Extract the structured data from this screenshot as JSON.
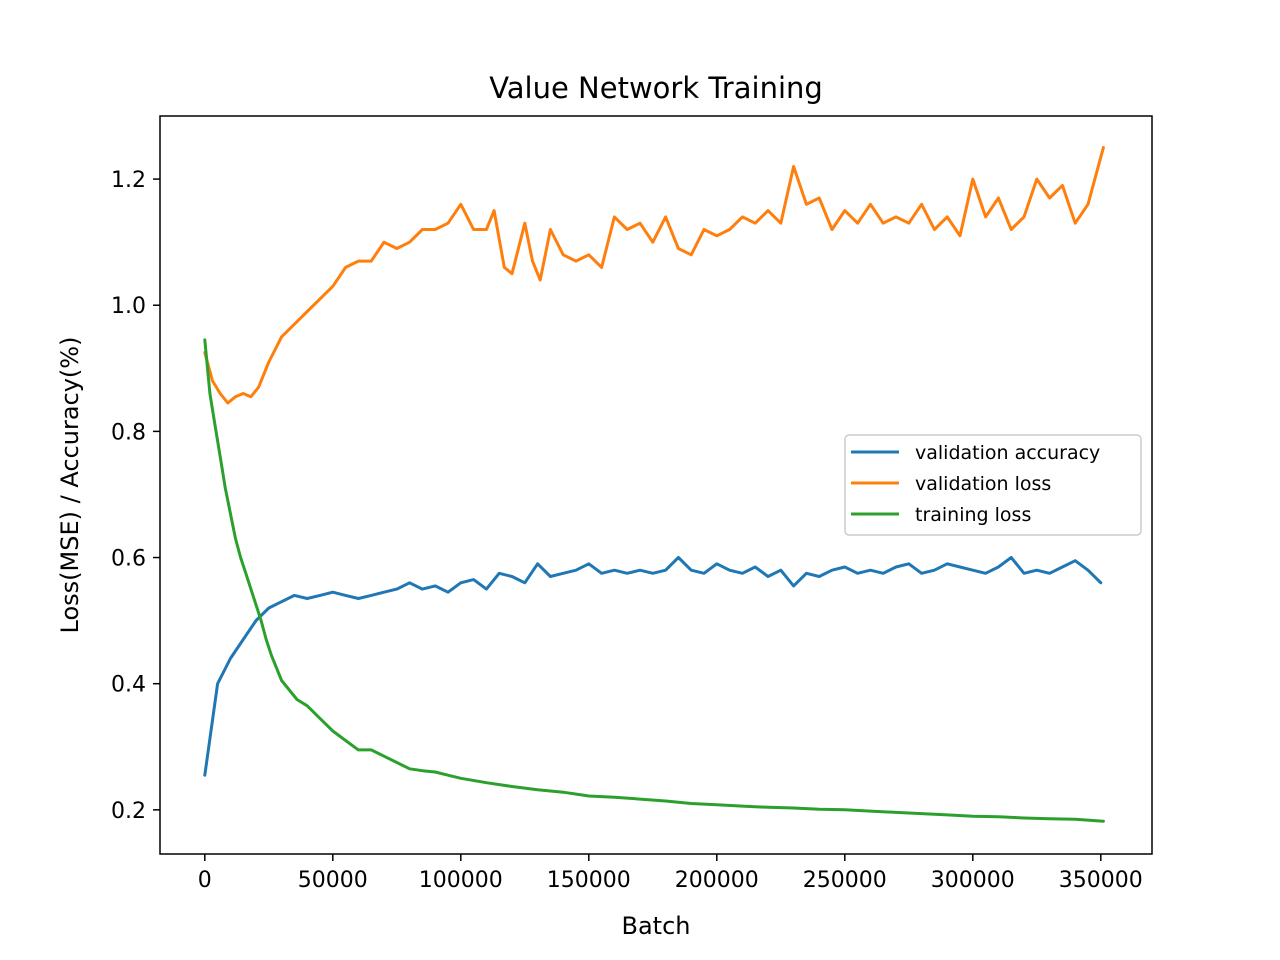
{
  "chart_data": {
    "type": "line",
    "title": "Value Network Training",
    "xlabel": "Batch",
    "ylabel": "Loss(MSE) / Accuracy(%)",
    "xlim": [
      -17500,
      370000
    ],
    "ylim": [
      0.13,
      1.3
    ],
    "xticks": [
      0,
      50000,
      100000,
      150000,
      200000,
      250000,
      300000,
      350000
    ],
    "yticks": [
      0.2,
      0.4,
      0.6,
      0.8,
      1.0,
      1.2
    ],
    "xtick_labels": [
      "0",
      "50000",
      "100000",
      "150000",
      "200000",
      "250000",
      "300000",
      "350000"
    ],
    "ytick_labels": [
      "0.2",
      "0.4",
      "0.6",
      "0.8",
      "1.0",
      "1.2"
    ],
    "grid": false,
    "legend_position": "center-right",
    "series": [
      {
        "name": "validation accuracy",
        "color": "#1f77b4",
        "x": [
          0,
          5000,
          10000,
          15000,
          20000,
          25000,
          30000,
          35000,
          40000,
          45000,
          50000,
          55000,
          60000,
          65000,
          70000,
          75000,
          80000,
          85000,
          90000,
          95000,
          100000,
          105000,
          110000,
          115000,
          120000,
          125000,
          130000,
          135000,
          140000,
          145000,
          150000,
          155000,
          160000,
          165000,
          170000,
          175000,
          180000,
          185000,
          190000,
          195000,
          200000,
          205000,
          210000,
          215000,
          220000,
          225000,
          230000,
          235000,
          240000,
          245000,
          250000,
          255000,
          260000,
          265000,
          270000,
          275000,
          280000,
          285000,
          290000,
          295000,
          300000,
          305000,
          310000,
          315000,
          320000,
          325000,
          330000,
          335000,
          340000,
          345000,
          350000
        ],
        "y": [
          0.255,
          0.4,
          0.44,
          0.47,
          0.5,
          0.52,
          0.53,
          0.54,
          0.535,
          0.54,
          0.545,
          0.54,
          0.535,
          0.54,
          0.545,
          0.55,
          0.56,
          0.55,
          0.555,
          0.545,
          0.56,
          0.565,
          0.55,
          0.575,
          0.57,
          0.56,
          0.59,
          0.57,
          0.575,
          0.58,
          0.59,
          0.575,
          0.58,
          0.575,
          0.58,
          0.575,
          0.58,
          0.6,
          0.58,
          0.575,
          0.59,
          0.58,
          0.575,
          0.585,
          0.57,
          0.58,
          0.555,
          0.575,
          0.57,
          0.58,
          0.585,
          0.575,
          0.58,
          0.575,
          0.585,
          0.59,
          0.575,
          0.58,
          0.59,
          0.585,
          0.58,
          0.575,
          0.585,
          0.6,
          0.575,
          0.58,
          0.575,
          0.585,
          0.595,
          0.58,
          0.56
        ]
      },
      {
        "name": "validation loss",
        "color": "#ff7f0e",
        "x": [
          0,
          3000,
          6000,
          9000,
          12000,
          15000,
          18000,
          21000,
          25000,
          30000,
          35000,
          40000,
          45000,
          50000,
          55000,
          60000,
          65000,
          70000,
          75000,
          80000,
          85000,
          90000,
          95000,
          100000,
          105000,
          110000,
          113000,
          117000,
          120000,
          125000,
          128000,
          131000,
          135000,
          140000,
          145000,
          150000,
          155000,
          160000,
          165000,
          170000,
          175000,
          180000,
          185000,
          190000,
          195000,
          200000,
          205000,
          210000,
          215000,
          220000,
          225000,
          230000,
          235000,
          240000,
          245000,
          250000,
          255000,
          260000,
          265000,
          270000,
          275000,
          280000,
          285000,
          290000,
          295000,
          300000,
          305000,
          310000,
          315000,
          320000,
          325000,
          330000,
          335000,
          340000,
          345000,
          351000
        ],
        "y": [
          0.925,
          0.88,
          0.86,
          0.845,
          0.855,
          0.86,
          0.855,
          0.87,
          0.91,
          0.95,
          0.97,
          0.99,
          1.01,
          1.03,
          1.06,
          1.07,
          1.07,
          1.1,
          1.09,
          1.1,
          1.12,
          1.12,
          1.13,
          1.16,
          1.12,
          1.12,
          1.15,
          1.06,
          1.05,
          1.13,
          1.07,
          1.04,
          1.12,
          1.08,
          1.07,
          1.08,
          1.06,
          1.14,
          1.12,
          1.13,
          1.1,
          1.14,
          1.09,
          1.08,
          1.12,
          1.11,
          1.12,
          1.14,
          1.13,
          1.15,
          1.13,
          1.22,
          1.16,
          1.17,
          1.12,
          1.15,
          1.13,
          1.16,
          1.13,
          1.14,
          1.13,
          1.16,
          1.12,
          1.14,
          1.11,
          1.2,
          1.14,
          1.17,
          1.12,
          1.14,
          1.2,
          1.17,
          1.19,
          1.13,
          1.16,
          1.25
        ]
      },
      {
        "name": "training loss",
        "color": "#2ca02c",
        "x": [
          0,
          2000,
          4000,
          6000,
          8000,
          10000,
          12000,
          14000,
          16000,
          18000,
          20000,
          22000,
          24000,
          26000,
          28000,
          30000,
          33000,
          36000,
          40000,
          45000,
          50000,
          55000,
          60000,
          65000,
          70000,
          75000,
          80000,
          85000,
          90000,
          95000,
          100000,
          110000,
          120000,
          130000,
          140000,
          150000,
          160000,
          170000,
          180000,
          190000,
          200000,
          210000,
          220000,
          230000,
          240000,
          250000,
          260000,
          270000,
          280000,
          290000,
          300000,
          310000,
          320000,
          330000,
          340000,
          351000
        ],
        "y": [
          0.945,
          0.86,
          0.81,
          0.76,
          0.71,
          0.67,
          0.63,
          0.6,
          0.575,
          0.55,
          0.525,
          0.5,
          0.47,
          0.445,
          0.425,
          0.405,
          0.39,
          0.375,
          0.365,
          0.345,
          0.325,
          0.31,
          0.295,
          0.295,
          0.285,
          0.275,
          0.265,
          0.262,
          0.26,
          0.255,
          0.25,
          0.243,
          0.237,
          0.232,
          0.228,
          0.222,
          0.22,
          0.217,
          0.214,
          0.21,
          0.208,
          0.206,
          0.204,
          0.203,
          0.201,
          0.2,
          0.198,
          0.196,
          0.194,
          0.192,
          0.19,
          0.189,
          0.187,
          0.186,
          0.185,
          0.182
        ]
      }
    ]
  }
}
